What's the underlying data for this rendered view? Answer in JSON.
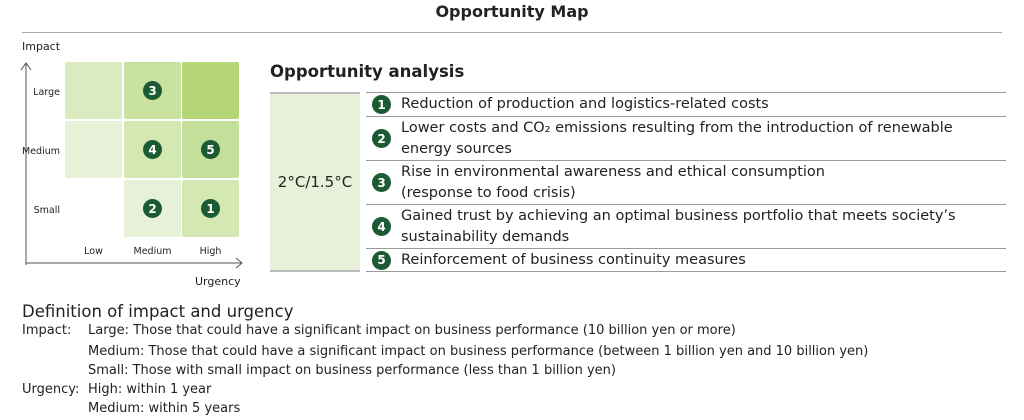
{
  "title": "Opportunity Map",
  "map": {
    "y_axis": "Impact",
    "x_axis": "Urgency",
    "y_levels": [
      "Large",
      "Medium",
      "Small"
    ],
    "x_levels": [
      "Low",
      "Medium",
      "High"
    ],
    "cells": [
      {
        "impact": "Large",
        "urgency": "Low",
        "color": "#d9ebbf",
        "items": ""
      },
      {
        "impact": "Large",
        "urgency": "Medium",
        "color": "#c9e2a0",
        "items": "3"
      },
      {
        "impact": "Large",
        "urgency": "High",
        "color": "#b6d67a",
        "items": ""
      },
      {
        "impact": "Medium",
        "urgency": "Low",
        "color": "#e7f1d7",
        "items": ""
      },
      {
        "impact": "Medium",
        "urgency": "Medium",
        "color": "#d3e8b3",
        "items": "4"
      },
      {
        "impact": "Medium",
        "urgency": "High",
        "color": "#c4df99",
        "items": "5"
      },
      {
        "impact": "Small",
        "urgency": "Medium",
        "color": "#e7f1d7",
        "items": "2"
      },
      {
        "impact": "Small",
        "urgency": "High",
        "color": "#d3e8b3",
        "items": "1"
      }
    ]
  },
  "analysis": {
    "heading": "Opportunity analysis",
    "scenario": "2°C/1.5°C",
    "items": [
      {
        "n": "1",
        "text": "Reduction of production and logistics-related costs"
      },
      {
        "n": "2",
        "text": "Lower costs and CO₂ emissions resulting from the introduction of renewable energy sources"
      },
      {
        "n": "3",
        "text": "Rise in environmental awareness and ethical consumption\n(response to food crisis)"
      },
      {
        "n": "4",
        "text": "Gained trust by achieving an optimal business portfolio that meets society’s sustainability demands"
      },
      {
        "n": "5",
        "text": "Reinforcement of business continuity measures"
      }
    ]
  },
  "definition": {
    "heading": "Definition of impact and urgency",
    "impact_label": "Impact:",
    "impact": [
      "Large: Those that could have a significant impact on business performance (10 billion yen or more)",
      "Medium: Those that could have a significant impact on business performance (between 1 billion yen and 10 billion yen)",
      "Small: Those with small impact on business performance (less than 1 billion yen)"
    ],
    "urgency_label": "Urgency:",
    "urgency": [
      "High: within 1 year",
      "Medium: within 5 years"
    ]
  },
  "colors": {
    "accent": "#1c5a33",
    "scenario_bg": "#e7f0d8"
  }
}
